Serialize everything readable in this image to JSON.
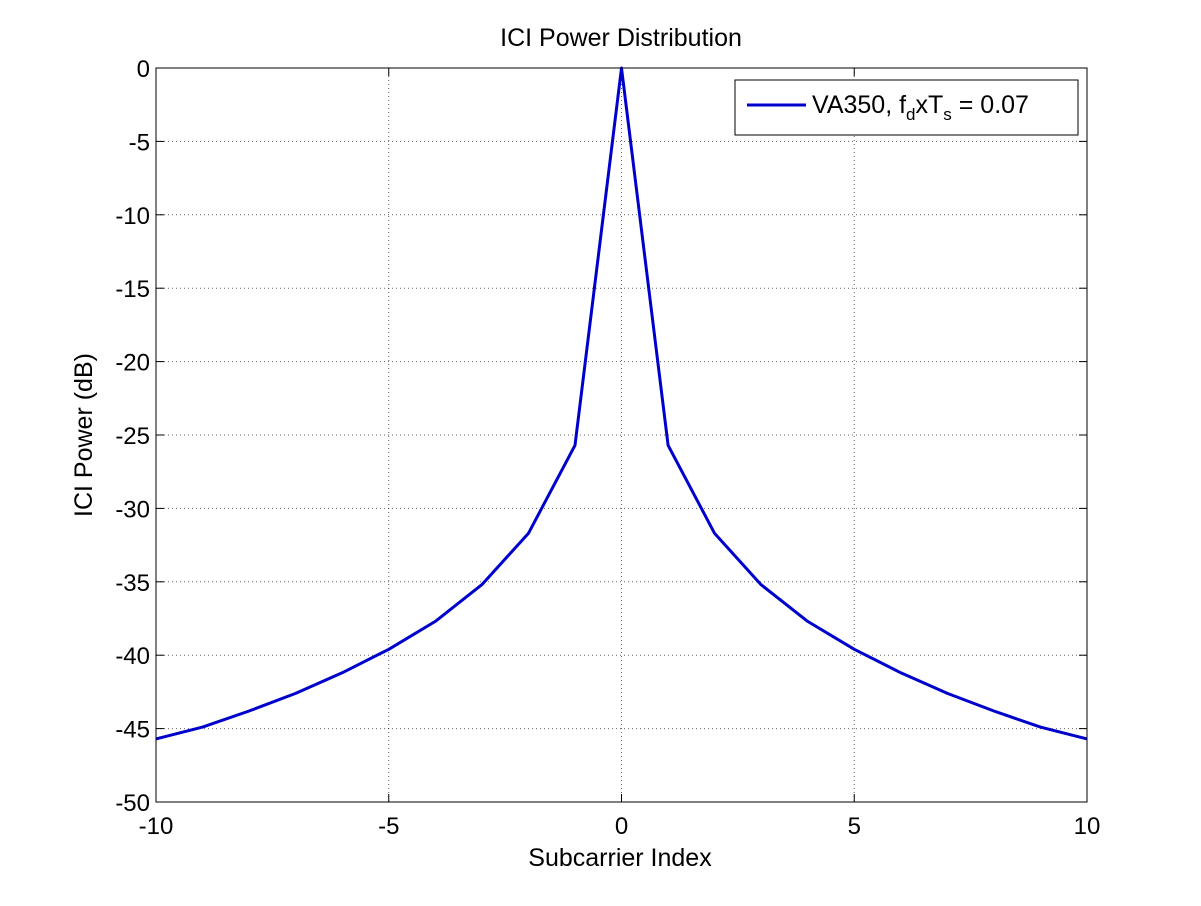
{
  "chart_data": {
    "type": "line",
    "title": "ICI Power Distribution",
    "xlabel": "Subcarrier Index",
    "ylabel": "ICI Power (dB)",
    "xlim": [
      -10,
      10
    ],
    "ylim": [
      -50,
      0
    ],
    "xticks": [
      -10,
      -5,
      0,
      5,
      10
    ],
    "yticks": [
      0,
      -5,
      -10,
      -15,
      -20,
      -25,
      -30,
      -35,
      -40,
      -45,
      -50
    ],
    "grid": true,
    "legend_position": "top-right",
    "series": [
      {
        "name": "VA350, f_d x T_s = 0.07",
        "legend": {
          "base": "VA350, f",
          "sub1": "d",
          "mid": "xT",
          "sub2": "s",
          "tail": " = 0.07"
        },
        "color": "#0000cc",
        "x": [
          -10,
          -9,
          -8,
          -7,
          -6,
          -5,
          -4,
          -3,
          -2,
          -1,
          0,
          1,
          2,
          3,
          4,
          5,
          6,
          7,
          8,
          9,
          10
        ],
        "y": [
          -45.7,
          -44.9,
          -43.8,
          -42.6,
          -41.2,
          -39.6,
          -37.7,
          -35.2,
          -31.7,
          -25.7,
          0,
          -25.7,
          -31.7,
          -35.2,
          -37.7,
          -39.6,
          -41.2,
          -42.6,
          -43.8,
          -44.9,
          -45.7
        ]
      }
    ]
  }
}
